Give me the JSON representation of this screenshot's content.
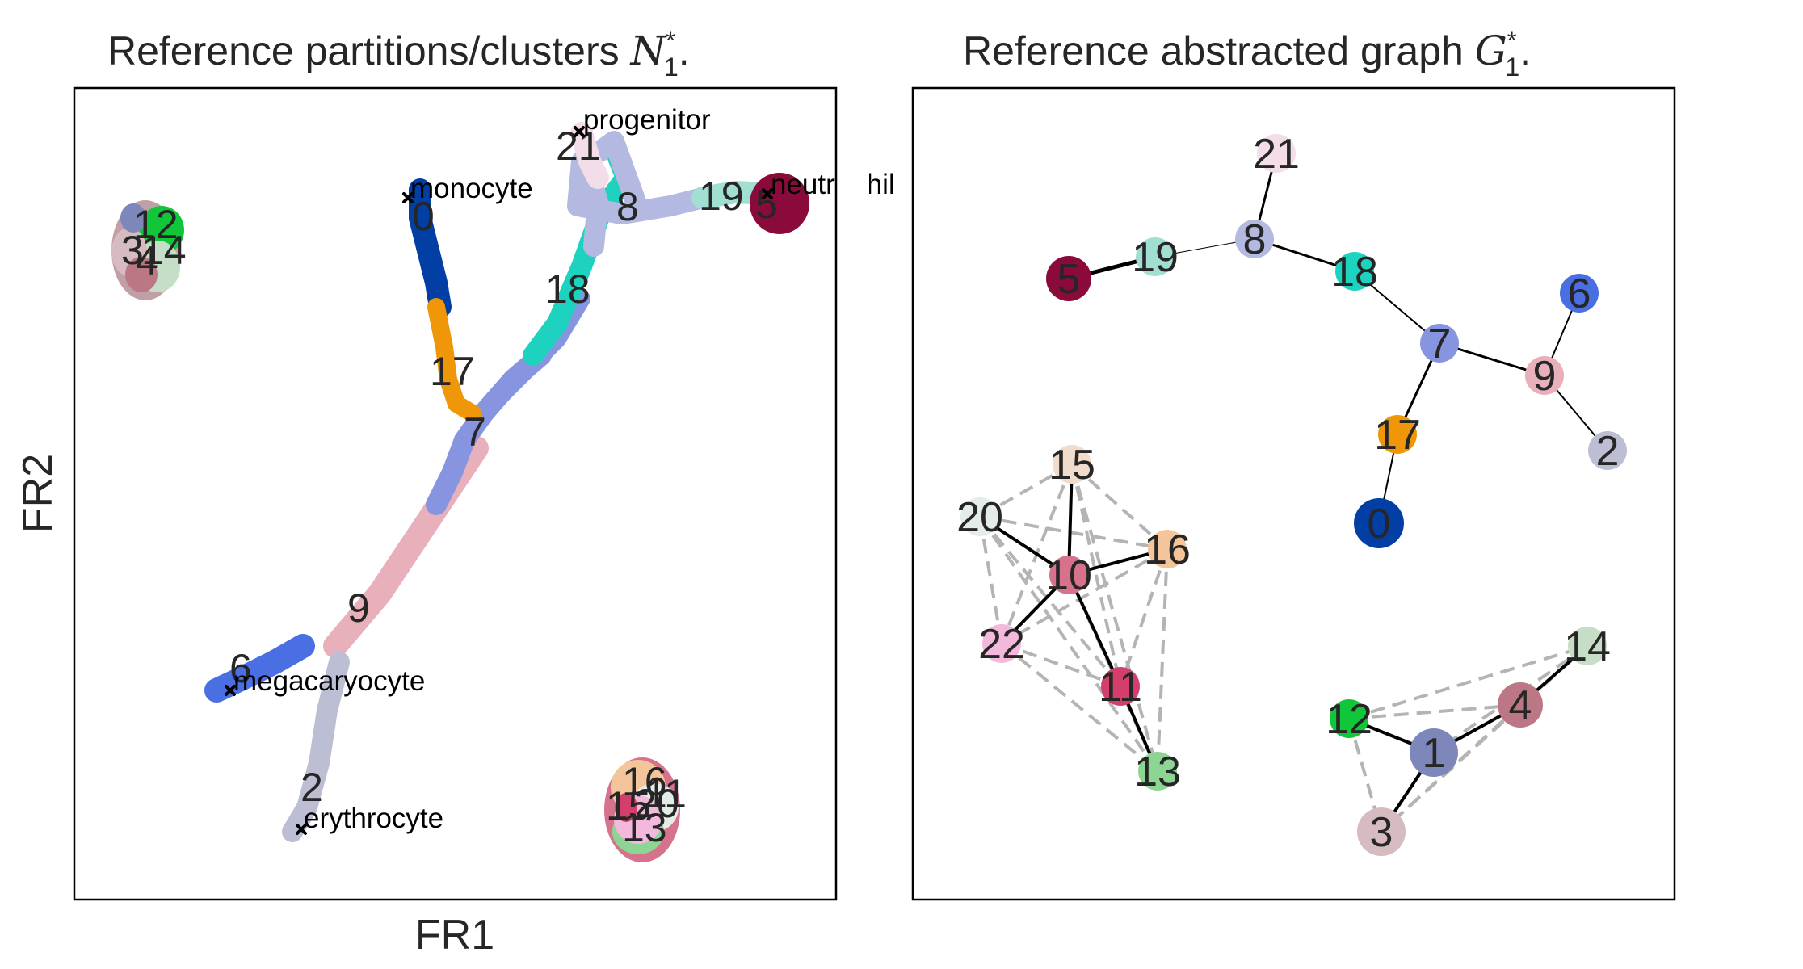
{
  "left_panel": {
    "title": "Reference partitions/clusters",
    "title_symbol": "N",
    "title_sub": "1",
    "title_sup": "*",
    "title_end": ".",
    "xlabel": "FR1",
    "ylabel": "FR2",
    "cluster_labels": [
      "0",
      "2",
      "6",
      "7",
      "8",
      "9",
      "17",
      "18",
      "19",
      "5",
      "21",
      "12",
      "3",
      "14",
      "4",
      "16",
      "15",
      "20",
      "13",
      "11"
    ],
    "annotations": [
      "progenitor",
      "monocyte",
      "neutrophil",
      "megacaryocyte",
      "erythrocyte"
    ]
  },
  "right_panel": {
    "title": "Reference abstracted graph",
    "title_symbol": "G",
    "title_sub": "1",
    "title_sup": "*",
    "title_end": ".",
    "nodes": [
      {
        "id": "21",
        "color": "#f3dde8"
      },
      {
        "id": "8",
        "color": "#b3b9e0"
      },
      {
        "id": "19",
        "color": "#a1dfd3"
      },
      {
        "id": "5",
        "color": "#8b0a3c"
      },
      {
        "id": "18",
        "color": "#1dd3c0"
      },
      {
        "id": "7",
        "color": "#8795e0"
      },
      {
        "id": "6",
        "color": "#4a6fe3"
      },
      {
        "id": "9",
        "color": "#e8b0bb"
      },
      {
        "id": "2",
        "color": "#bcbfd4"
      },
      {
        "id": "17",
        "color": "#ef9708"
      },
      {
        "id": "0",
        "color": "#023fa5"
      },
      {
        "id": "15",
        "color": "#f0dccd"
      },
      {
        "id": "20",
        "color": "#e4ece9"
      },
      {
        "id": "16",
        "color": "#f4c59a"
      },
      {
        "id": "10",
        "color": "#d6728c"
      },
      {
        "id": "22",
        "color": "#f2b9dc"
      },
      {
        "id": "11",
        "color": "#d33f6a"
      },
      {
        "id": "13",
        "color": "#8dd593"
      },
      {
        "id": "12",
        "color": "#11c638"
      },
      {
        "id": "1",
        "color": "#7d87b9"
      },
      {
        "id": "4",
        "color": "#bb7784"
      },
      {
        "id": "14",
        "color": "#c6dec7"
      },
      {
        "id": "3",
        "color": "#d6bcc0"
      }
    ],
    "solid_edges": [
      [
        "21",
        "8"
      ],
      [
        "8",
        "19"
      ],
      [
        "19",
        "5"
      ],
      [
        "8",
        "18"
      ],
      [
        "18",
        "7"
      ],
      [
        "7",
        "9"
      ],
      [
        "9",
        "6"
      ],
      [
        "9",
        "2"
      ],
      [
        "7",
        "17"
      ],
      [
        "17",
        "0"
      ],
      [
        "15",
        "10"
      ],
      [
        "20",
        "10"
      ],
      [
        "16",
        "10"
      ],
      [
        "10",
        "22"
      ],
      [
        "10",
        "11"
      ],
      [
        "11",
        "13"
      ],
      [
        "12",
        "1"
      ],
      [
        "1",
        "4"
      ],
      [
        "1",
        "3"
      ],
      [
        "4",
        "14"
      ]
    ],
    "dashed_edges": [
      [
        "15",
        "20"
      ],
      [
        "15",
        "16"
      ],
      [
        "15",
        "22"
      ],
      [
        "15",
        "11"
      ],
      [
        "15",
        "13"
      ],
      [
        "20",
        "16"
      ],
      [
        "20",
        "22"
      ],
      [
        "20",
        "11"
      ],
      [
        "20",
        "13"
      ],
      [
        "16",
        "22"
      ],
      [
        "16",
        "11"
      ],
      [
        "16",
        "13"
      ],
      [
        "22",
        "11"
      ],
      [
        "22",
        "13"
      ],
      [
        "10",
        "13"
      ],
      [
        "12",
        "4"
      ],
      [
        "12",
        "14"
      ],
      [
        "12",
        "3"
      ],
      [
        "4",
        "3"
      ],
      [
        "14",
        "3"
      ],
      [
        "14",
        "1"
      ]
    ]
  }
}
